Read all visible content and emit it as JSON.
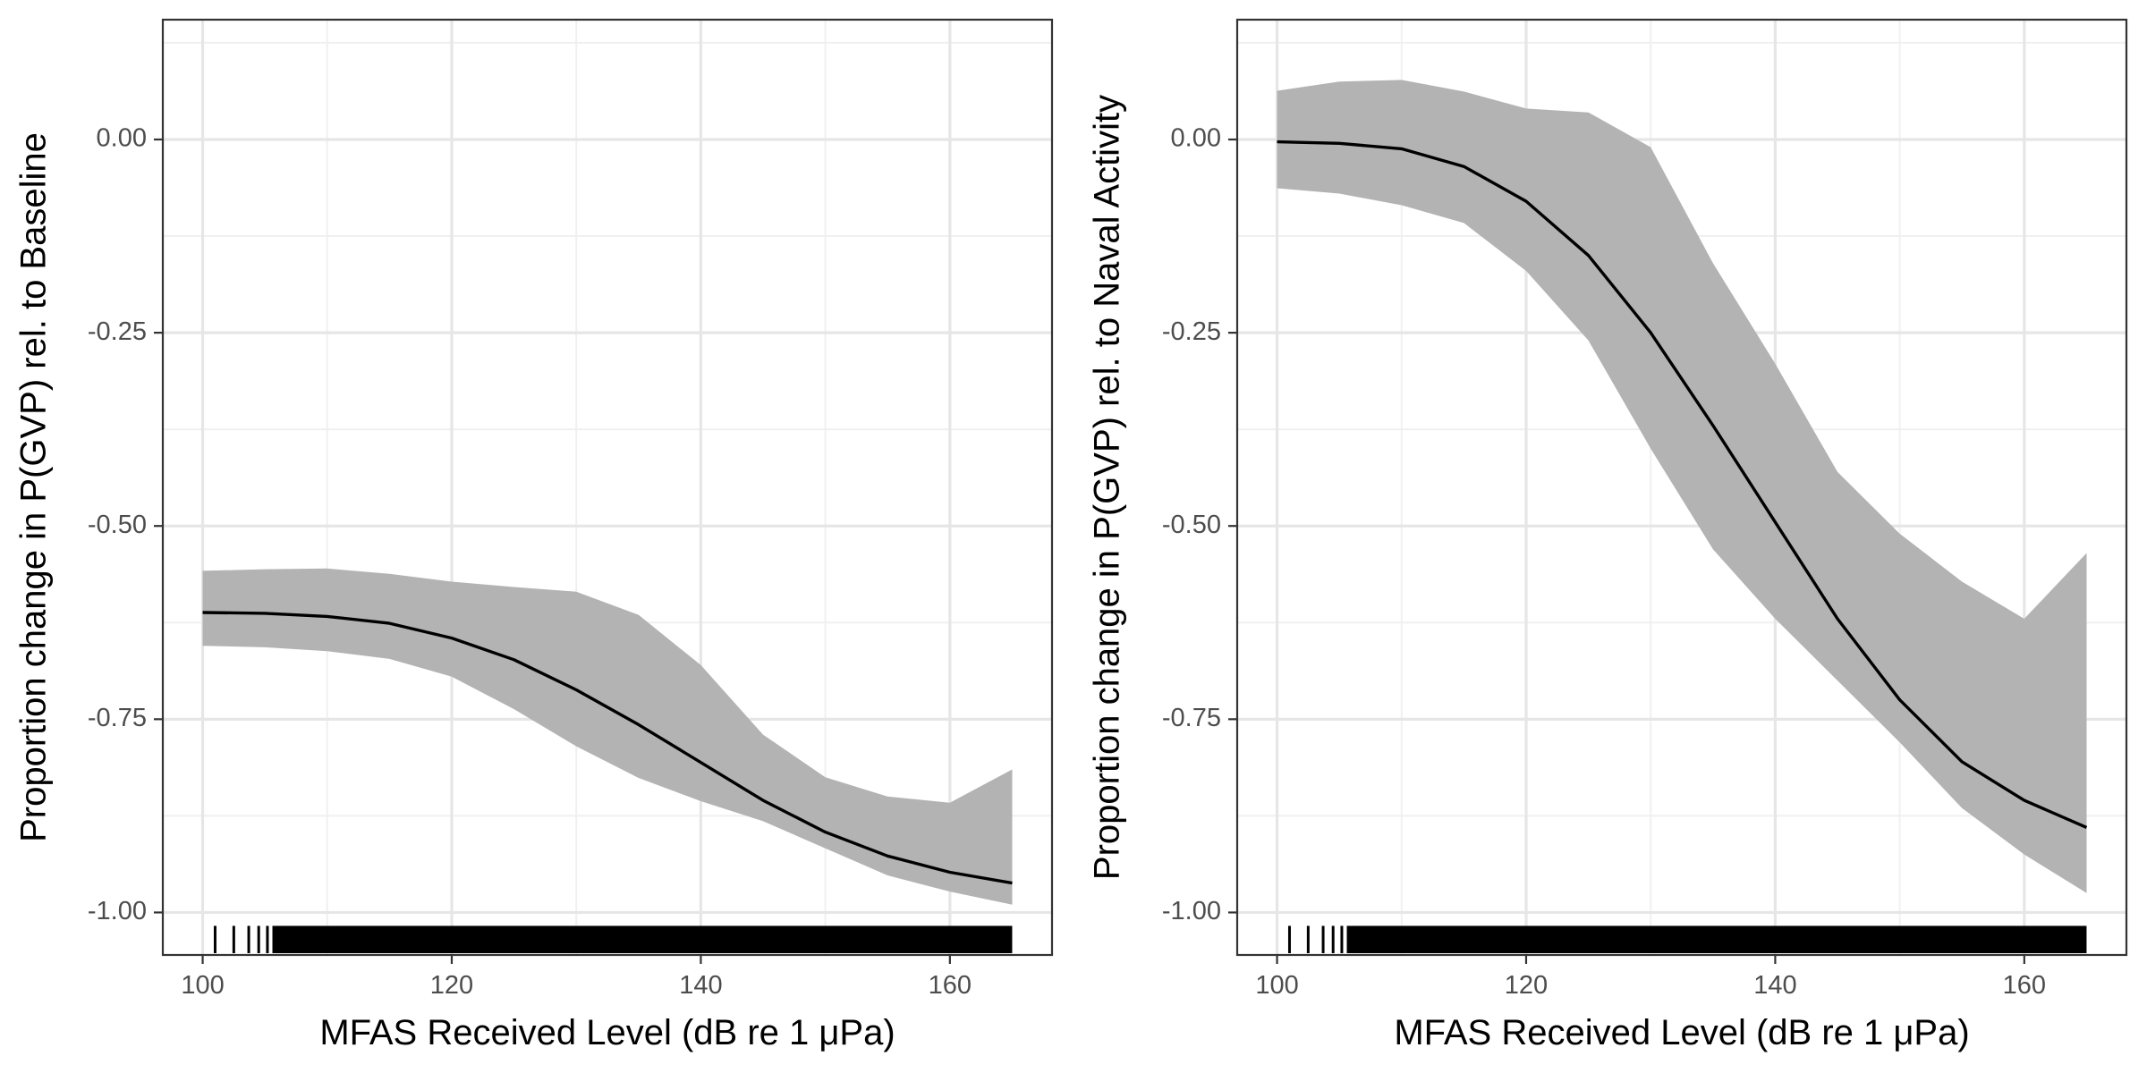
{
  "chart_data": [
    {
      "type": "line",
      "xlabel": "MFAS Received Level (dB re 1 μPa)",
      "ylabel": "Proportion change in P(GVP) rel. to Baseline",
      "xlim": [
        96.8,
        168.2
      ],
      "ylim": [
        -1.055,
        0.155
      ],
      "x_ticks": [
        100,
        120,
        140,
        160
      ],
      "y_ticks": [
        0,
        -0.25,
        -0.5,
        -0.75,
        -1
      ],
      "y_tick_labels": [
        "0.00",
        "-0.25",
        "-0.50",
        "-0.75",
        "-1.00"
      ],
      "grid": true,
      "series": [
        {
          "x": [
            100,
            105,
            110,
            115,
            120,
            125,
            130,
            135,
            140,
            145,
            150,
            155,
            160,
            165
          ],
          "y": [
            -0.612,
            -0.613,
            -0.617,
            -0.626,
            -0.645,
            -0.673,
            -0.712,
            -0.757,
            -0.806,
            -0.855,
            -0.896,
            -0.927,
            -0.948,
            -0.962
          ],
          "lower": [
            -0.655,
            -0.657,
            -0.662,
            -0.672,
            -0.695,
            -0.737,
            -0.785,
            -0.826,
            -0.856,
            -0.882,
            -0.917,
            -0.952,
            -0.973,
            -0.99
          ],
          "upper": [
            -0.558,
            -0.556,
            -0.555,
            -0.562,
            -0.572,
            -0.579,
            -0.585,
            -0.615,
            -0.68,
            -0.77,
            -0.825,
            -0.85,
            -0.858,
            -0.815
          ]
        }
      ],
      "rug": {
        "sparse_x": [
          101,
          102.5,
          103.7,
          104.5,
          105.2
        ],
        "dense_start": 105.6,
        "dense_end": 165,
        "y": -1.0
      },
      "band_color": "#b3b3b3",
      "line_color": "#000000"
    },
    {
      "type": "line",
      "xlabel": "MFAS Received Level (dB re 1 μPa)",
      "ylabel": "Proportion change in P(GVP) rel. to Naval Activity",
      "xlim": [
        96.8,
        168.2
      ],
      "ylim": [
        -1.055,
        0.155
      ],
      "x_ticks": [
        100,
        120,
        140,
        160
      ],
      "y_ticks": [
        0,
        -0.25,
        -0.5,
        -0.75,
        -1
      ],
      "y_tick_labels": [
        "0.00",
        "-0.25",
        "-0.50",
        "-0.75",
        "-1.00"
      ],
      "grid": true,
      "series": [
        {
          "x": [
            100,
            105,
            110,
            115,
            120,
            125,
            130,
            135,
            140,
            145,
            150,
            155,
            160,
            165
          ],
          "y": [
            -0.003,
            -0.005,
            -0.012,
            -0.035,
            -0.08,
            -0.15,
            -0.25,
            -0.37,
            -0.495,
            -0.62,
            -0.725,
            -0.805,
            -0.855,
            -0.89
          ],
          "lower": [
            -0.063,
            -0.07,
            -0.085,
            -0.108,
            -0.17,
            -0.26,
            -0.4,
            -0.53,
            -0.62,
            -0.7,
            -0.78,
            -0.865,
            -0.925,
            -0.975
          ],
          "upper": [
            0.063,
            0.075,
            0.077,
            0.062,
            0.04,
            0.035,
            -0.01,
            -0.16,
            -0.29,
            -0.43,
            -0.51,
            -0.572,
            -0.62,
            -0.535
          ]
        }
      ],
      "rug": {
        "sparse_x": [
          101,
          102.5,
          103.7,
          104.5,
          105.2
        ],
        "dense_start": 105.6,
        "dense_end": 165,
        "y": -1.0
      },
      "band_color": "#b3b3b3",
      "line_color": "#000000"
    }
  ]
}
